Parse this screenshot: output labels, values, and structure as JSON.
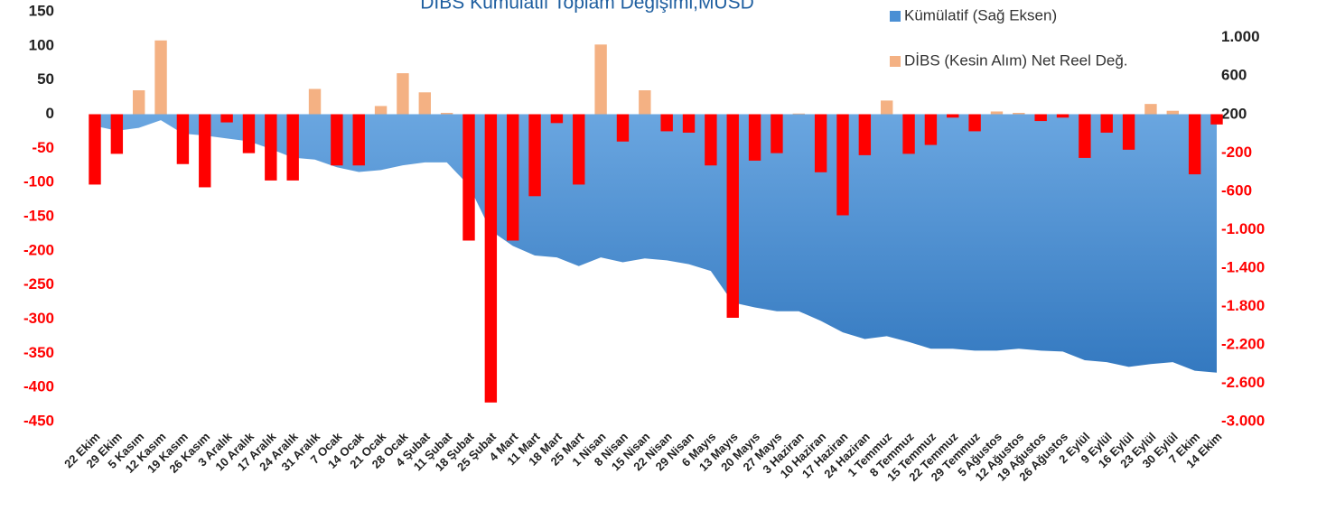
{
  "chart_data": {
    "type": "bar",
    "title": "DİBS Kümülatif Toplam Değişimi,MUSD",
    "categories": [
      "22 Ekim",
      "29 Ekim",
      "5 Kasım",
      "12 Kasım",
      "19 Kasım",
      "26 Kasım",
      "3 Aralık",
      "10 Aralık",
      "17 Aralık",
      "24 Aralık",
      "31 Aralık",
      "7 Ocak",
      "14 Ocak",
      "21 Ocak",
      "28 Ocak",
      "4 Şubat",
      "11 Şubat",
      "18 Şubat",
      "25 Şubat",
      "4 Mart",
      "11 Mart",
      "18 Mart",
      "25 Mart",
      "1 Nisan",
      "8 Nisan",
      "15 Nisan",
      "22 Nisan",
      "29 Nisan",
      "6 Mayıs",
      "13 Mayıs",
      "20 Mayıs",
      "27 Mayıs",
      "3 Haziran",
      "10 Haziran",
      "17 Haziran",
      "24 Haziran",
      "1 Temmuz",
      "8 Temmuz",
      "15 Temmuz",
      "22 Temmuz",
      "29 Temmuz",
      "5 Ağustos",
      "12 Ağustos",
      "19 Ağustos",
      "26 Ağustos",
      "2 Eylül",
      "9 Eylül",
      "16 Eylül",
      "23 Eylül",
      "30 Eylül",
      "7 Ekim",
      "14 Ekim"
    ],
    "series": [
      {
        "name": "Kümülatif (Sağ Eksen)",
        "type": "area",
        "axis": "y2",
        "color": "#4a8fd4",
        "values": [
          80,
          30,
          60,
          140,
          0,
          -20,
          -50,
          -80,
          -160,
          -250,
          -270,
          -350,
          -400,
          -380,
          -330,
          -300,
          -300,
          -540,
          -1010,
          -1170,
          -1270,
          -1290,
          -1380,
          -1290,
          -1340,
          -1300,
          -1320,
          -1360,
          -1430,
          -1760,
          -1810,
          -1850,
          -1850,
          -1950,
          -2070,
          -2140,
          -2110,
          -2170,
          -2240,
          -2240,
          -2260,
          -2260,
          -2240,
          -2260,
          -2270,
          -2360,
          -2380,
          -2430,
          -2400,
          -2380,
          -2470,
          -2490
        ]
      },
      {
        "name": "DİBS (Kesin Alım) Net Reel Değ.",
        "type": "bar",
        "color": "#f4b183",
        "negative_color": "#ff0000",
        "values": [
          -103,
          -58,
          35,
          108,
          -73,
          -107,
          -12,
          -57,
          -97,
          -97,
          37,
          -75,
          -75,
          12,
          60,
          32,
          2,
          -185,
          -422,
          -185,
          -120,
          -13,
          -103,
          102,
          -40,
          35,
          -25,
          -27,
          -75,
          -298,
          -68,
          -57,
          1,
          -85,
          -148,
          -60,
          20,
          -58,
          -45,
          -5,
          -25,
          4,
          2,
          -10,
          -5,
          -64,
          -27,
          -52,
          15,
          5,
          -88,
          -15
        ]
      }
    ],
    "ylim": [
      -450,
      150
    ],
    "yticks": [
      -450,
      -400,
      -350,
      -300,
      -250,
      -200,
      -150,
      -100,
      -50,
      0,
      50,
      100,
      150
    ],
    "y2lim": [
      -3000,
      1270
    ],
    "y2ticks": [
      {
        "value": -3000,
        "label": "-3.000"
      },
      {
        "value": -2600,
        "label": "-2.600"
      },
      {
        "value": -2200,
        "label": "-2.200"
      },
      {
        "value": -1800,
        "label": "-1.800"
      },
      {
        "value": -1400,
        "label": "-1.400"
      },
      {
        "value": -1000,
        "label": "-1.000"
      },
      -600,
      -200,
      200,
      600,
      {
        "value": 1000,
        "label": "1.000"
      }
    ],
    "negative_tick_color": "#ff0000",
    "legend": "top-right"
  }
}
